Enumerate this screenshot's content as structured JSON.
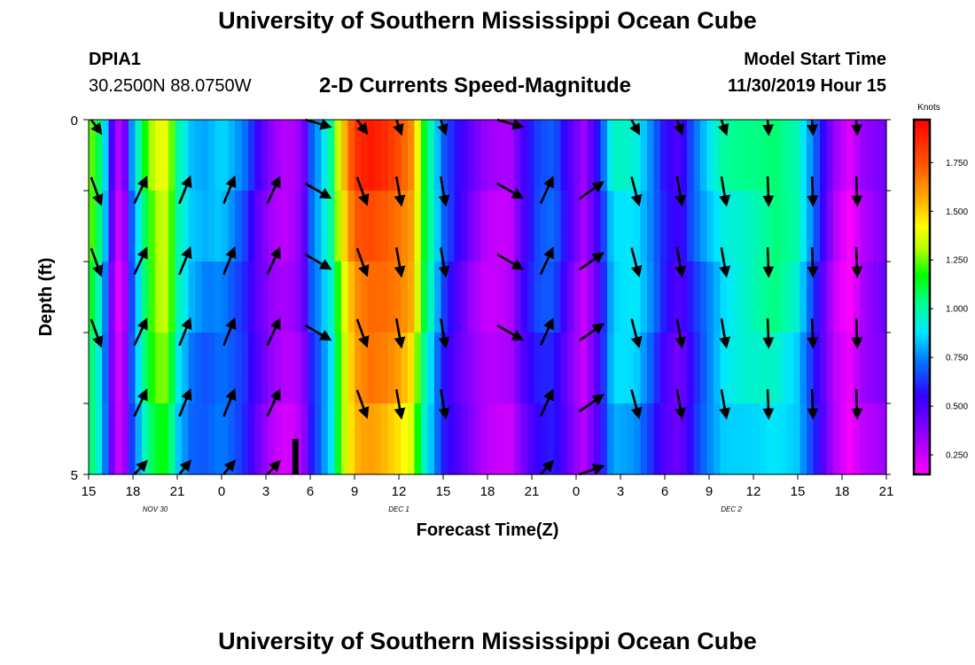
{
  "header": {
    "title": "University of Southern Mississippi Ocean Cube",
    "station": "DPIA1",
    "coordinates": "30.2500N 88.0750W",
    "subtitle": "2-D Currents Speed-Magnitude",
    "start_label": "Model Start Time",
    "start_value": "11/30/2019 Hour 15"
  },
  "footer": {
    "title": "University of Southern Mississippi Ocean Cube"
  },
  "chart_data": {
    "type": "heatmap",
    "title": "2-D Currents Speed-Magnitude",
    "xlabel": "Forecast Time(Z)",
    "ylabel": "Depth (ft)",
    "x_tick_labels": [
      "15",
      "18",
      "21",
      "0",
      "3",
      "6",
      "9",
      "12",
      "15",
      "18",
      "21",
      "0",
      "3",
      "6",
      "9",
      "12",
      "15",
      "18",
      "21"
    ],
    "x_hours": [
      0,
      3,
      6,
      9,
      12,
      15,
      18,
      21,
      24,
      27,
      30,
      33,
      36,
      39,
      42,
      45,
      48,
      51,
      54
    ],
    "date_labels": [
      {
        "label": "NOV  30",
        "hour": 4.5
      },
      {
        "label": "DEC  1",
        "hour": 21
      },
      {
        "label": "DEC  2",
        "hour": 43.5
      }
    ],
    "y_tick_labels": [
      "0",
      "5"
    ],
    "ylim": [
      0,
      5
    ],
    "depth_levels": 5,
    "colorbar": {
      "label": "Knots",
      "min": 0.15,
      "max": 1.97,
      "ticks": [
        "0.250",
        "0.500",
        "0.750",
        "1.000",
        "1.250",
        "1.500",
        "1.750"
      ],
      "tick_values": [
        0.25,
        0.5,
        0.75,
        1.0,
        1.25,
        1.5,
        1.75
      ]
    },
    "speed_profile_knots": [
      [
        0,
        1.3
      ],
      [
        0.5,
        1.15
      ],
      [
        1.0,
        0.95
      ],
      [
        1.5,
        0.5
      ],
      [
        2.0,
        0.25
      ],
      [
        2.5,
        0.4
      ],
      [
        3.0,
        0.8
      ],
      [
        3.5,
        1.0
      ],
      [
        4.0,
        1.25
      ],
      [
        5.0,
        1.45
      ],
      [
        5.5,
        1.35
      ],
      [
        6.0,
        1.05
      ],
      [
        7.0,
        0.85
      ],
      [
        8.0,
        0.8
      ],
      [
        9.0,
        0.85
      ],
      [
        10.5,
        0.7
      ],
      [
        11.5,
        0.5
      ],
      [
        12.5,
        0.35
      ],
      [
        13.5,
        0.3
      ],
      [
        14.5,
        0.4
      ],
      [
        15.0,
        0.7
      ],
      [
        15.5,
        0.8
      ],
      [
        16.5,
        1.05
      ],
      [
        17.0,
        1.4
      ],
      [
        18.0,
        1.8
      ],
      [
        19.0,
        1.88
      ],
      [
        20.0,
        1.85
      ],
      [
        21.0,
        1.78
      ],
      [
        22.0,
        1.65
      ],
      [
        22.5,
        1.25
      ],
      [
        23.5,
        0.9
      ],
      [
        24.0,
        0.7
      ],
      [
        25.0,
        0.55
      ],
      [
        26.0,
        0.4
      ],
      [
        27.0,
        0.3
      ],
      [
        28.5,
        0.3
      ],
      [
        29.5,
        0.55
      ],
      [
        30.5,
        0.7
      ],
      [
        31.5,
        0.72
      ],
      [
        32.5,
        0.5
      ],
      [
        33.5,
        0.3
      ],
      [
        34.5,
        0.55
      ],
      [
        35.5,
        0.95
      ],
      [
        37.0,
        0.95
      ],
      [
        38.0,
        0.8
      ],
      [
        39.0,
        0.6
      ],
      [
        40.0,
        0.5
      ],
      [
        41.0,
        0.7
      ],
      [
        42.0,
        0.85
      ],
      [
        43.0,
        0.98
      ],
      [
        45.0,
        1.05
      ],
      [
        46.5,
        1.1
      ],
      [
        48.0,
        1.0
      ],
      [
        49.5,
        0.6
      ],
      [
        50.5,
        0.3
      ],
      [
        51.5,
        0.18
      ],
      [
        52.5,
        0.35
      ],
      [
        54.0,
        0.45
      ]
    ],
    "current_vectors": [
      {
        "hour": 0.5,
        "direction_deg": 160,
        "rows": [
          0,
          1,
          2,
          3
        ]
      },
      {
        "hour": 3.5,
        "direction_deg": 25,
        "rows": [
          1,
          2,
          3,
          4,
          5
        ]
      },
      {
        "hour": 6.5,
        "direction_deg": 22,
        "rows": [
          1,
          2,
          3,
          4,
          5
        ]
      },
      {
        "hour": 9.5,
        "direction_deg": 22,
        "rows": [
          1,
          2,
          3,
          4,
          5
        ]
      },
      {
        "hour": 12.5,
        "direction_deg": 25,
        "rows": [
          1,
          2,
          3,
          4,
          5
        ]
      },
      {
        "hour": 15.5,
        "direction_deg": 120,
        "rows": [
          0,
          1,
          2,
          3
        ]
      },
      {
        "hour": 18.5,
        "direction_deg": 160,
        "rows": [
          0,
          1,
          2,
          3,
          4
        ]
      },
      {
        "hour": 21.0,
        "direction_deg": 170,
        "rows": [
          0,
          1,
          2,
          3,
          4
        ]
      },
      {
        "hour": 24.0,
        "direction_deg": 170,
        "rows": [
          0,
          1,
          2,
          3,
          4
        ]
      },
      {
        "hour": 28.5,
        "direction_deg": 120,
        "rows": [
          0,
          1,
          2,
          3
        ]
      },
      {
        "hour": 31.0,
        "direction_deg": 25,
        "rows": [
          1,
          2,
          3,
          4,
          5
        ]
      },
      {
        "hour": 34.0,
        "direction_deg": 55,
        "rows": [
          1,
          2,
          3,
          4,
          5
        ]
      },
      {
        "hour": 37.0,
        "direction_deg": 165,
        "rows": [
          0,
          1,
          2,
          3,
          4
        ]
      },
      {
        "hour": 40.0,
        "direction_deg": 170,
        "rows": [
          0,
          1,
          2,
          3,
          4
        ]
      },
      {
        "hour": 43.0,
        "direction_deg": 170,
        "rows": [
          0,
          1,
          2,
          3,
          4
        ]
      },
      {
        "hour": 46.0,
        "direction_deg": 178,
        "rows": [
          0,
          1,
          2,
          3,
          4
        ]
      },
      {
        "hour": 49.0,
        "direction_deg": 178,
        "rows": [
          0,
          1,
          2,
          3,
          4
        ]
      },
      {
        "hour": 52.0,
        "direction_deg": 178,
        "rows": [
          0,
          1,
          2,
          3,
          4
        ]
      }
    ],
    "current_time_marker_hour": 14
  }
}
